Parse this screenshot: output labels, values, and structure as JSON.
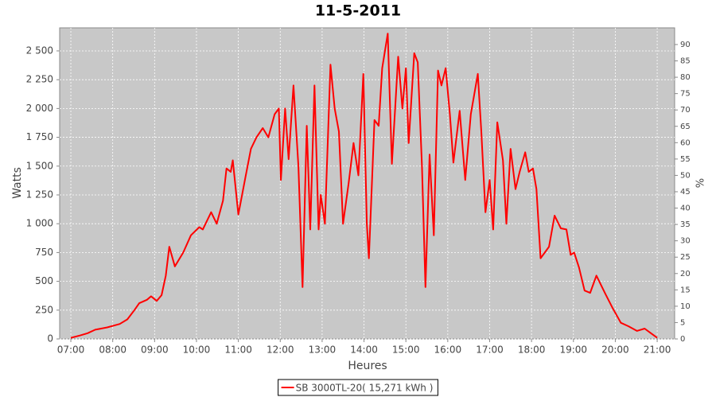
{
  "chart_data": {
    "type": "line",
    "title": "11-5-2011",
    "x_label": "Heures",
    "y_label": "Watts",
    "y2_label": "%",
    "x": [
      "07:00",
      "07:13",
      "07:24",
      "07:35",
      "07:52",
      "08:10",
      "08:21",
      "08:31",
      "08:38",
      "08:49",
      "08:55",
      "09:03",
      "09:10",
      "09:16",
      "09:21",
      "09:29",
      "09:41",
      "09:52",
      "10:04",
      "10:09",
      "10:21",
      "10:29",
      "10:38",
      "10:43",
      "10:49",
      "10:52",
      "11:00",
      "11:10",
      "11:18",
      "11:26",
      "11:35",
      "11:43",
      "11:52",
      "11:58",
      "12:01",
      "12:07",
      "12:12",
      "12:19",
      "12:26",
      "12:32",
      "12:38",
      "12:43",
      "12:49",
      "12:55",
      "12:58",
      "13:04",
      "13:12",
      "13:18",
      "13:24",
      "13:30",
      "13:38",
      "13:45",
      "13:52",
      "13:59",
      "14:04",
      "14:07",
      "14:15",
      "14:21",
      "14:26",
      "14:34",
      "14:40",
      "14:49",
      "14:55",
      "15:00",
      "15:04",
      "15:12",
      "15:17",
      "15:23",
      "15:28",
      "15:34",
      "15:40",
      "15:46",
      "15:51",
      "15:57",
      "16:03",
      "16:08",
      "16:17",
      "16:25",
      "16:33",
      "16:43",
      "16:48",
      "16:54",
      "17:00",
      "17:05",
      "17:11",
      "17:19",
      "17:24",
      "17:30",
      "17:37",
      "17:43",
      "17:51",
      "17:56",
      "18:02",
      "18:07",
      "18:13",
      "18:25",
      "18:33",
      "18:42",
      "18:50",
      "18:56",
      "19:01",
      "19:08",
      "19:16",
      "19:24",
      "19:33",
      "19:45",
      "19:56",
      "20:08",
      "20:19",
      "20:31",
      "20:42",
      "20:51",
      "21:00"
    ],
    "series": [
      {
        "name": "SB 3000TL-20( 15,271 kWh )",
        "color": "#ff0000",
        "values": [
          10,
          30,
          50,
          80,
          100,
          130,
          170,
          250,
          310,
          340,
          370,
          330,
          380,
          550,
          800,
          630,
          750,
          900,
          970,
          950,
          1100,
          1000,
          1200,
          1480,
          1450,
          1550,
          1080,
          1400,
          1650,
          1750,
          1830,
          1750,
          1950,
          2000,
          1380,
          2000,
          1560,
          2200,
          1500,
          450,
          1850,
          950,
          2200,
          950,
          1250,
          1000,
          2380,
          2000,
          1800,
          1000,
          1350,
          1700,
          1420,
          2300,
          1000,
          700,
          1900,
          1850,
          2350,
          2650,
          1520,
          2450,
          2000,
          2350,
          1700,
          2480,
          2400,
          1500,
          450,
          1600,
          900,
          2330,
          2200,
          2350,
          1950,
          1530,
          1980,
          1380,
          1950,
          2300,
          1800,
          1100,
          1380,
          950,
          1880,
          1550,
          1000,
          1650,
          1300,
          1450,
          1620,
          1450,
          1480,
          1300,
          700,
          800,
          1070,
          960,
          950,
          730,
          750,
          620,
          420,
          400,
          550,
          400,
          270,
          140,
          110,
          70,
          90,
          50,
          10
        ]
      }
    ],
    "xlim": [
      "06:44",
      "21:25"
    ],
    "xticks": [
      "07:00",
      "08:00",
      "09:00",
      "10:00",
      "11:00",
      "12:00",
      "13:00",
      "14:00",
      "15:00",
      "16:00",
      "17:00",
      "18:00",
      "19:00",
      "20:00",
      "21:00"
    ],
    "ylim": [
      0,
      2700
    ],
    "yticks": [
      0,
      250,
      500,
      750,
      {
        "value": 1000,
        "label": "1 000"
      },
      {
        "value": 1250,
        "label": "1 250"
      },
      {
        "value": 1500,
        "label": "1 500"
      },
      {
        "value": 1750,
        "label": "1 750"
      },
      {
        "value": 2000,
        "label": "2 000"
      },
      {
        "value": 2250,
        "label": "2 250"
      },
      {
        "value": 2500,
        "label": "2 500"
      }
    ],
    "y2lim": [
      0,
      95.1
    ],
    "y2ticks": [
      0,
      5,
      10,
      15,
      20,
      25,
      30,
      35,
      40,
      45,
      50,
      55,
      60,
      65,
      70,
      75,
      80,
      85,
      90
    ],
    "grid": true,
    "legend": "bottom"
  }
}
